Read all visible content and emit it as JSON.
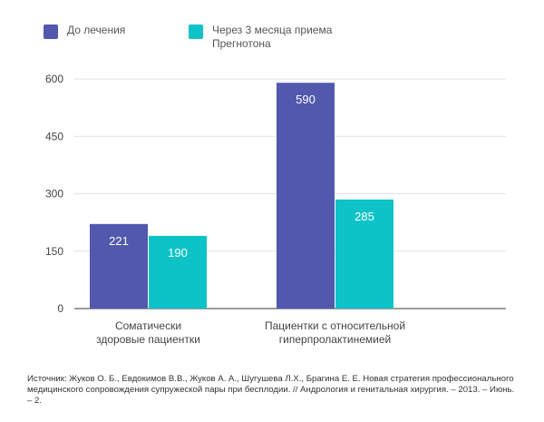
{
  "legend": {
    "before_label": "До лечения",
    "after_label": "Через 3 месяца приема Прегнотона"
  },
  "colors": {
    "before": "#5258ae",
    "after": "#0dc3c8",
    "grid": "#dfe2ea",
    "axis": "#3a3a3a",
    "label_text": "#ffffff"
  },
  "chart_data": {
    "type": "bar",
    "categories": [
      "Соматически здоровые пациентки",
      "Пациентки с относительной гиперпролактинемией"
    ],
    "category_lines": [
      [
        "Соматически",
        "здоровые пациентки"
      ],
      [
        "Пациентки с относительной",
        "гиперпролактинемией"
      ]
    ],
    "series": [
      {
        "name": "До лечения",
        "values": [
          221,
          590
        ],
        "value_labels": [
          "221",
          "590"
        ]
      },
      {
        "name": "Через 3 месяца приема Прегнотона",
        "values": [
          190,
          285
        ],
        "value_labels": [
          "190",
          "285"
        ]
      }
    ],
    "ylim": [
      0,
      600
    ],
    "yticks": [
      0,
      150,
      300,
      450,
      600
    ],
    "ytick_labels": [
      "0",
      "150",
      "300",
      "450",
      "600"
    ],
    "xlabel": "",
    "ylabel": "",
    "grid": true,
    "legend_position": "top-left"
  },
  "source": {
    "text": "Источник: Жуков О. Б., Евдокимов В.В., Жуков А. А., Шугушева Л.Х., Брагина Е. Е. Новая стратегия профессионального медицинского сопровождения супружеской пары при бесплодии. // Андрология и генитальная хирургия. – 2013. – Июнь. – 2."
  }
}
